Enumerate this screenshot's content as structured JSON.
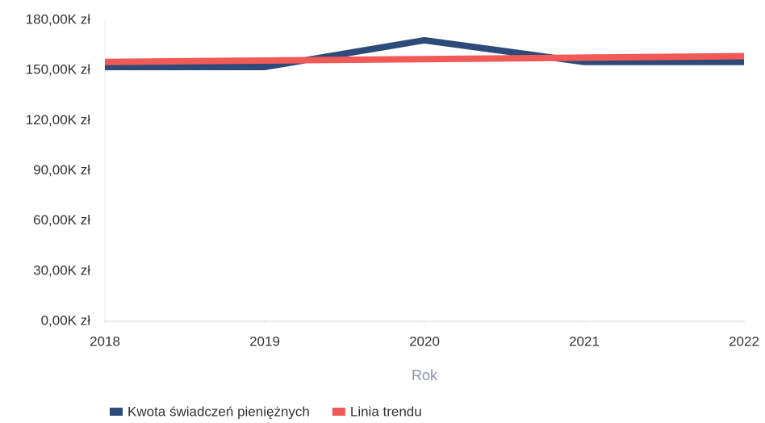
{
  "chart_data": {
    "type": "line",
    "x_label": "Rok",
    "x": [
      2018,
      2019,
      2020,
      2021,
      2022
    ],
    "xlim": [
      2018,
      2022
    ],
    "xticks": [
      2018,
      2019,
      2020,
      2021,
      2022
    ],
    "series": [
      {
        "name": "Kwota świadczeń pieniężnych",
        "color": "#2e4a78",
        "values": [
          152000,
          152000,
          168000,
          155000,
          155000
        ]
      },
      {
        "name": "Linia trendu",
        "color": "#f25a57",
        "values": [
          155000,
          155900,
          156700,
          157600,
          158500
        ]
      }
    ],
    "ylim": [
      0,
      180000
    ],
    "yticks": [
      {
        "value": 0,
        "label": "0,00K zł"
      },
      {
        "value": 30000,
        "label": "30,00K zł"
      },
      {
        "value": 60000,
        "label": "60,00K zł"
      },
      {
        "value": 90000,
        "label": "90,00K zł"
      },
      {
        "value": 120000,
        "label": "120,00K zł"
      },
      {
        "value": 150000,
        "label": "150,00K zł"
      },
      {
        "value": 180000,
        "label": "180,00K zł"
      }
    ],
    "grid": false,
    "legend": "bottom"
  }
}
